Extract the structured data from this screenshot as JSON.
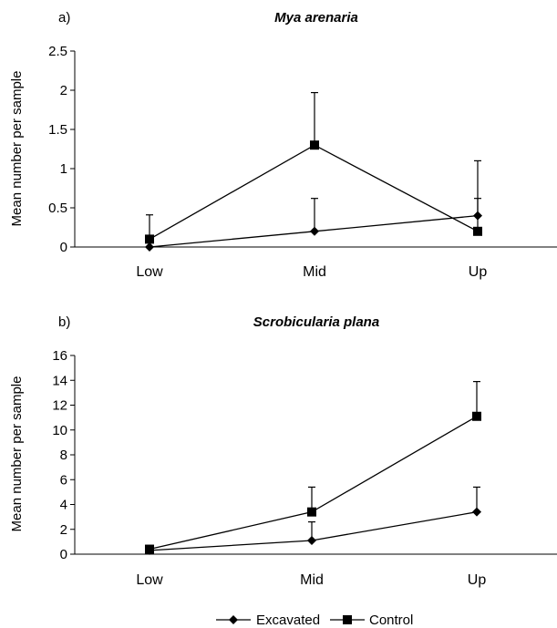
{
  "chart_data": [
    {
      "type": "line",
      "panel_label": "a)",
      "title": "Mya arenaria",
      "ylabel": "Mean number per sample",
      "categories": [
        "Low",
        "Mid",
        "Up"
      ],
      "ylim": [
        0,
        2.5
      ],
      "yticks": [
        "0",
        "0.5",
        "1",
        "1.5",
        "2",
        "2.5"
      ],
      "series": [
        {
          "name": "Excavated",
          "marker": "diamond",
          "values": [
            0,
            0.2,
            0.4
          ],
          "error_upper": [
            0,
            0.62,
            1.1
          ]
        },
        {
          "name": "Control",
          "marker": "square",
          "values": [
            0.1,
            1.3,
            0.2
          ],
          "error_upper": [
            0.41,
            1.97,
            0.62
          ]
        }
      ]
    },
    {
      "type": "line",
      "panel_label": "b)",
      "title": "Scrobicularia plana",
      "ylabel": "Mean number per sample",
      "categories": [
        "Low",
        "Mid",
        "Up"
      ],
      "ylim": [
        0,
        16
      ],
      "yticks": [
        "0",
        "2",
        "4",
        "6",
        "8",
        "10",
        "12",
        "14",
        "16"
      ],
      "series": [
        {
          "name": "Excavated",
          "marker": "diamond",
          "values": [
            0.3,
            1.1,
            3.4
          ],
          "error_upper": [
            0.6,
            2.6,
            5.4
          ]
        },
        {
          "name": "Control",
          "marker": "square",
          "values": [
            0.4,
            3.4,
            11.1
          ],
          "error_upper": [
            0.7,
            5.4,
            13.9
          ]
        }
      ]
    }
  ],
  "legend": {
    "items": [
      "Excavated",
      "Control"
    ],
    "placement": "bottom-center"
  }
}
